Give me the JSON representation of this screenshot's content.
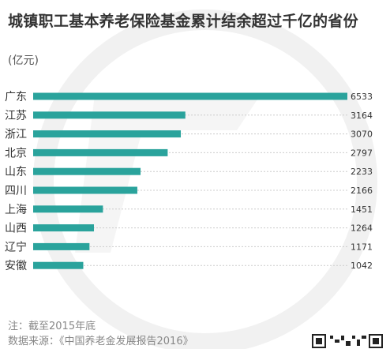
{
  "title": "城镇职工基本养老保险基金累计结余超过千亿的省份",
  "unit": "(亿元)",
  "note": "注：截至2015年底",
  "source": "数据来源：《中国养老金发展报告2016》",
  "colors": {
    "bar": "#2aa39c",
    "grid": "#cccccc",
    "text": "#333333",
    "note": "#888888"
  },
  "chart_data": {
    "type": "bar",
    "orientation": "horizontal",
    "categories": [
      "广东",
      "江苏",
      "浙江",
      "北京",
      "山东",
      "四川",
      "上海",
      "山西",
      "辽宁",
      "安徽"
    ],
    "values": [
      6533,
      3164,
      3070,
      2797,
      2233,
      2166,
      1451,
      1264,
      1171,
      1042
    ],
    "xlim": [
      0,
      6533
    ],
    "ylabel": "(亿元)",
    "grid": true
  }
}
